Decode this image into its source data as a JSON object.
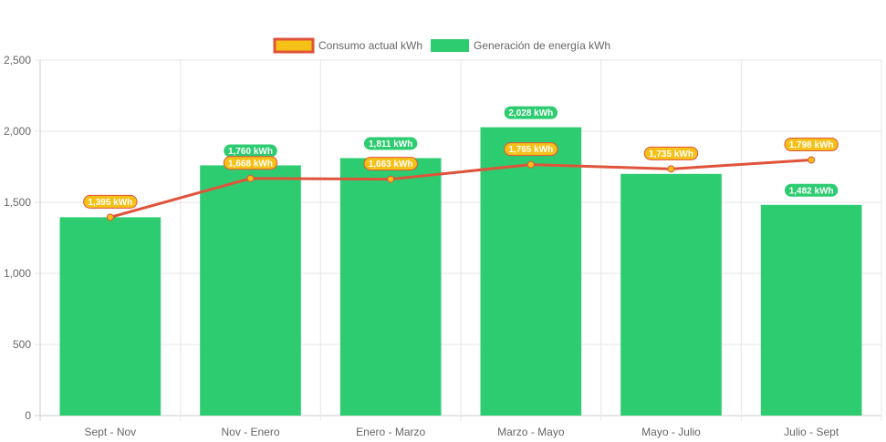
{
  "colors": {
    "line": "#e0533b",
    "line_label_fill": "#f5c116",
    "line_label_stroke": "#e0533b",
    "point_fill": "#f5c116",
    "bar": "#2ecc71",
    "grid": "#e6e6e6",
    "axis": "#cccccc",
    "text": "#666666"
  },
  "chart_data": {
    "type": "bar",
    "categories": [
      "Sept - Nov",
      "Nov - Enero",
      "Enero - Marzo",
      "Marzo - Mayo",
      "Mayo - Julio",
      "Julio - Sept"
    ],
    "ylim": [
      0,
      2500
    ],
    "yticks": [
      "0",
      "500",
      "1,000",
      "1,500",
      "2,000",
      "2,500"
    ],
    "grid": true,
    "legend_position": "top-center",
    "series": [
      {
        "name": "Consumo actual kWh",
        "type": "line",
        "values": [
          1395,
          1668,
          1663,
          1765,
          1735,
          1798
        ],
        "labels": [
          "1,395 kWh",
          "1,668 kWh",
          "1,663 kWh",
          "1,765 kWh",
          "1,735 kWh",
          "1,798 kWh"
        ]
      },
      {
        "name": "Generación de energía kWh",
        "type": "bar",
        "values": [
          1395,
          1760,
          1811,
          2028,
          1700,
          1482
        ],
        "labels": [
          "",
          "1,760 kWh",
          "1,811 kWh",
          "2,028 kWh",
          "",
          "1,482 kWh"
        ]
      }
    ]
  }
}
